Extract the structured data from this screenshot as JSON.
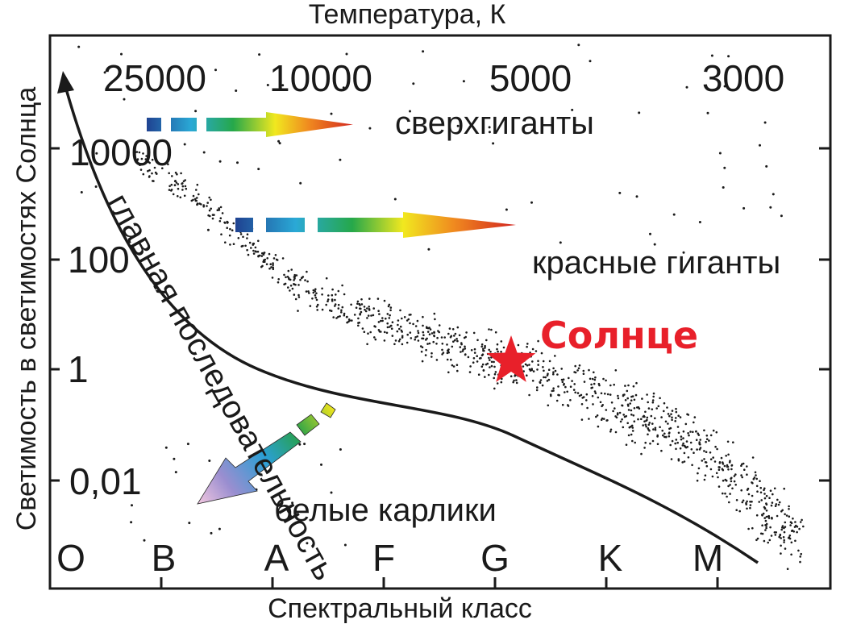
{
  "diagram": {
    "top_axis_title": "Температура, К",
    "bottom_axis_title": "Спектральный класс",
    "left_axis_title": "Светимость в светимостях Солнца",
    "temperature_ticks": [
      "25000",
      "10000",
      "5000",
      "3000"
    ],
    "luminosity_ticks": [
      "10000",
      "100",
      "1",
      "0,01"
    ],
    "spectral_classes": [
      "O",
      "B",
      "A",
      "F",
      "G",
      "K",
      "M"
    ],
    "regions": {
      "supergiants": "сверхгиганты",
      "red_giants": "красные гиганты",
      "main_sequence": "главная последовательность",
      "white_dwarfs": "белые карлики"
    },
    "sun_label": "Солнце",
    "colors": {
      "sun": "#e8202a",
      "curve": "#1a1a1a",
      "arrow_gradient": [
        "#1f3f8f",
        "#2aa9d6",
        "#26a84a",
        "#f1e81f",
        "#f08a1f",
        "#d2231f"
      ],
      "dwarf_gradient": [
        "#e6e21f",
        "#27a14a",
        "#2a9fd4",
        "#9a8ed0",
        "#f3c8e0"
      ]
    }
  }
}
